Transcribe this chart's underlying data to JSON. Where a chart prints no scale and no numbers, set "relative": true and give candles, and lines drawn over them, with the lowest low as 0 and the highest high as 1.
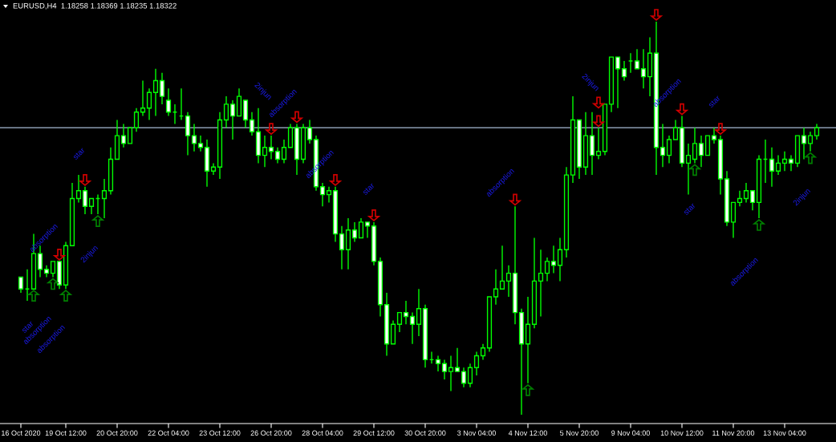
{
  "chart_data": {
    "type": "candlestick",
    "relative": true,
    "title": "EURUSD,H4  1.18258 1.18369 1.18235 1.18322",
    "categories": [
      "16 Oct 2020",
      null,
      null,
      null,
      null,
      null,
      null,
      "19 Oct 12:00",
      null,
      null,
      null,
      null,
      null,
      null,
      null,
      "20 Oct 20:00",
      null,
      null,
      null,
      null,
      null,
      null,
      null,
      "22 Oct 04:00",
      null,
      null,
      null,
      null,
      null,
      null,
      null,
      "23 Oct 12:00",
      null,
      null,
      null,
      null,
      null,
      null,
      null,
      "26 Oct 20:00",
      null,
      null,
      null,
      null,
      null,
      null,
      null,
      "28 Oct 04:00",
      null,
      null,
      null,
      null,
      null,
      null,
      null,
      "29 Oct 12:00",
      null,
      null,
      null,
      null,
      null,
      null,
      null,
      "30 Oct 20:00",
      null,
      null,
      null,
      null,
      null,
      null,
      null,
      "3 Nov 04:00",
      null,
      null,
      null,
      null,
      null,
      null,
      null,
      "4 Nov 12:00",
      null,
      null,
      null,
      null,
      null,
      null,
      null,
      "5 Nov 20:00",
      null,
      null,
      null,
      null,
      null,
      null,
      null,
      "9 Nov 04:00",
      null,
      null,
      null,
      null,
      null,
      null,
      null,
      "10 Nov 12:00",
      null,
      null,
      null,
      null,
      null,
      null,
      null,
      "11 Nov 20:00",
      null,
      null,
      null,
      null,
      null,
      null,
      null,
      "13 Nov 04:00",
      null,
      null,
      null,
      null,
      null
    ],
    "ohlc": [
      [
        0.35,
        0.35,
        0.31,
        0.32
      ],
      [
        0.32,
        0.37,
        0.29,
        0.32
      ],
      [
        0.32,
        0.46,
        0.32,
        0.41
      ],
      [
        0.41,
        0.43,
        0.35,
        0.37
      ],
      [
        0.37,
        0.38,
        0.35,
        0.36
      ],
      [
        0.36,
        0.39,
        0.35,
        0.39
      ],
      [
        0.39,
        0.39,
        0.32,
        0.33
      ],
      [
        0.33,
        0.44,
        0.32,
        0.43
      ],
      [
        0.43,
        0.59,
        0.43,
        0.55
      ],
      [
        0.55,
        0.61,
        0.54,
        0.57
      ],
      [
        0.57,
        0.58,
        0.51,
        0.53
      ],
      [
        0.53,
        0.55,
        0.51,
        0.55
      ],
      [
        0.55,
        0.56,
        0.51,
        0.55
      ],
      [
        0.55,
        0.6,
        0.5,
        0.57
      ],
      [
        0.57,
        0.68,
        0.56,
        0.65
      ],
      [
        0.65,
        0.75,
        0.65,
        0.71
      ],
      [
        0.71,
        0.74,
        0.68,
        0.69
      ],
      [
        0.69,
        0.73,
        0.69,
        0.73
      ],
      [
        0.73,
        0.78,
        0.72,
        0.77
      ],
      [
        0.77,
        0.85,
        0.76,
        0.78
      ],
      [
        0.78,
        0.83,
        0.75,
        0.82
      ],
      [
        0.82,
        0.88,
        0.76,
        0.85
      ],
      [
        0.85,
        0.87,
        0.79,
        0.81
      ],
      [
        0.8,
        0.83,
        0.76,
        0.77
      ],
      [
        0.77,
        0.79,
        0.74,
        0.77
      ],
      [
        0.76,
        0.83,
        0.75,
        0.76
      ],
      [
        0.76,
        0.77,
        0.66,
        0.71
      ],
      [
        0.71,
        0.74,
        0.67,
        0.69
      ],
      [
        0.69,
        0.71,
        0.67,
        0.68
      ],
      [
        0.68,
        0.7,
        0.58,
        0.62
      ],
      [
        0.62,
        0.64,
        0.61,
        0.63
      ],
      [
        0.63,
        0.77,
        0.6,
        0.75
      ],
      [
        0.75,
        0.81,
        0.73,
        0.79
      ],
      [
        0.79,
        0.8,
        0.7,
        0.76
      ],
      [
        0.76,
        0.83,
        0.76,
        0.81
      ],
      [
        0.8,
        0.8,
        0.73,
        0.75
      ],
      [
        0.75,
        0.77,
        0.71,
        0.72
      ],
      [
        0.72,
        0.78,
        0.64,
        0.66
      ],
      [
        0.66,
        0.71,
        0.63,
        0.68
      ],
      [
        0.68,
        0.71,
        0.65,
        0.67
      ],
      [
        0.67,
        0.68,
        0.64,
        0.65
      ],
      [
        0.65,
        0.7,
        0.64,
        0.68
      ],
      [
        0.68,
        0.74,
        0.68,
        0.73
      ],
      [
        0.73,
        0.74,
        0.61,
        0.65
      ],
      [
        0.65,
        0.74,
        0.64,
        0.73
      ],
      [
        0.73,
        0.75,
        0.69,
        0.7
      ],
      [
        0.7,
        0.71,
        0.57,
        0.58
      ],
      [
        0.58,
        0.59,
        0.53,
        0.56
      ],
      [
        0.56,
        0.58,
        0.54,
        0.57
      ],
      [
        0.57,
        0.58,
        0.44,
        0.46
      ],
      [
        0.46,
        0.48,
        0.37,
        0.42
      ],
      [
        0.42,
        0.5,
        0.37,
        0.47
      ],
      [
        0.47,
        0.49,
        0.44,
        0.45
      ],
      [
        0.45,
        0.5,
        0.45,
        0.49
      ],
      [
        0.49,
        0.49,
        0.45,
        0.48
      ],
      [
        0.48,
        0.49,
        0.38,
        0.39
      ],
      [
        0.39,
        0.4,
        0.25,
        0.28
      ],
      [
        0.28,
        0.31,
        0.15,
        0.18
      ],
      [
        0.18,
        0.24,
        0.18,
        0.23
      ],
      [
        0.23,
        0.26,
        0.21,
        0.26
      ],
      [
        0.26,
        0.29,
        0.23,
        0.25
      ],
      [
        0.25,
        0.26,
        0.18,
        0.23
      ],
      [
        0.23,
        0.32,
        0.2,
        0.27
      ],
      [
        0.27,
        0.28,
        0.12,
        0.14
      ],
      [
        0.14,
        0.16,
        0.13,
        0.14
      ],
      [
        0.14,
        0.15,
        0.11,
        0.13
      ],
      [
        0.13,
        0.14,
        0.09,
        0.11
      ],
      [
        0.11,
        0.15,
        0.06,
        0.12
      ],
      [
        0.12,
        0.17,
        0.11,
        0.11
      ],
      [
        0.11,
        0.12,
        0.07,
        0.08
      ],
      [
        0.08,
        0.13,
        0.07,
        0.12
      ],
      [
        0.12,
        0.16,
        0.1,
        0.15
      ],
      [
        0.15,
        0.18,
        0.14,
        0.17
      ],
      [
        0.17,
        0.3,
        0.16,
        0.3
      ],
      [
        0.3,
        0.37,
        0.28,
        0.32
      ],
      [
        0.32,
        0.43,
        0.32,
        0.34
      ],
      [
        0.34,
        0.38,
        0.3,
        0.36
      ],
      [
        0.36,
        0.53,
        0.23,
        0.26
      ],
      [
        0.26,
        0.27,
        0.0,
        0.18
      ],
      [
        0.18,
        0.3,
        0.08,
        0.23
      ],
      [
        0.23,
        0.45,
        0.22,
        0.34
      ],
      [
        0.34,
        0.42,
        0.25,
        0.36
      ],
      [
        0.36,
        0.4,
        0.34,
        0.39
      ],
      [
        0.39,
        0.43,
        0.36,
        0.38
      ],
      [
        0.38,
        0.45,
        0.34,
        0.42
      ],
      [
        0.42,
        0.63,
        0.4,
        0.61
      ],
      [
        0.61,
        0.81,
        0.59,
        0.75
      ],
      [
        0.75,
        0.75,
        0.6,
        0.63
      ],
      [
        0.63,
        0.77,
        0.61,
        0.71
      ],
      [
        0.71,
        0.77,
        0.61,
        0.66
      ],
      [
        0.66,
        0.73,
        0.65,
        0.67
      ],
      [
        0.67,
        0.79,
        0.66,
        0.79
      ],
      [
        0.79,
        0.91,
        0.77,
        0.91
      ],
      [
        0.91,
        0.91,
        0.78,
        0.88
      ],
      [
        0.88,
        0.9,
        0.85,
        0.86
      ],
      [
        0.9,
        0.92,
        0.87,
        0.9
      ],
      [
        0.9,
        0.93,
        0.88,
        0.88
      ],
      [
        0.88,
        0.93,
        0.83,
        0.86
      ],
      [
        0.86,
        0.96,
        0.81,
        0.92
      ],
      [
        0.92,
        1.0,
        0.61,
        0.68
      ],
      [
        0.68,
        0.74,
        0.63,
        0.66
      ],
      [
        0.66,
        0.71,
        0.64,
        0.7
      ],
      [
        0.7,
        0.75,
        0.7,
        0.73
      ],
      [
        0.73,
        0.76,
        0.63,
        0.64
      ],
      [
        0.64,
        0.69,
        0.56,
        0.66
      ],
      [
        0.65,
        0.73,
        0.64,
        0.69
      ],
      [
        0.69,
        0.71,
        0.63,
        0.66
      ],
      [
        0.66,
        0.71,
        0.66,
        0.71
      ],
      [
        0.71,
        0.73,
        0.69,
        0.7
      ],
      [
        0.7,
        0.71,
        0.56,
        0.6
      ],
      [
        0.6,
        0.62,
        0.48,
        0.49
      ],
      [
        0.49,
        0.54,
        0.45,
        0.54
      ],
      [
        0.54,
        0.57,
        0.53,
        0.55
      ],
      [
        0.55,
        0.59,
        0.54,
        0.57
      ],
      [
        0.57,
        0.57,
        0.52,
        0.54
      ],
      [
        0.54,
        0.66,
        0.5,
        0.65
      ],
      [
        0.65,
        0.7,
        0.59,
        0.65
      ],
      [
        0.65,
        0.68,
        0.58,
        0.62
      ],
      [
        0.62,
        0.66,
        0.61,
        0.64
      ],
      [
        0.64,
        0.67,
        0.62,
        0.65
      ],
      [
        0.65,
        0.66,
        0.62,
        0.64
      ],
      [
        0.64,
        0.71,
        0.63,
        0.71
      ],
      [
        0.71,
        0.73,
        0.65,
        0.69
      ],
      [
        0.69,
        0.72,
        0.67,
        0.71
      ],
      [
        0.71,
        0.74,
        0.7,
        0.73
      ]
    ],
    "ref_lines": [
      {
        "axis": "y",
        "value": 0.73,
        "color": "#8a9ab0"
      }
    ],
    "annotations": [
      "star",
      "absorption",
      "absorption",
      "absorption",
      "star",
      "2injun",
      "2injun",
      "absorption",
      "absorption",
      "star",
      "absorption",
      "2injun",
      "absorption",
      "star",
      "star",
      "absorption",
      "2injun"
    ]
  }
}
